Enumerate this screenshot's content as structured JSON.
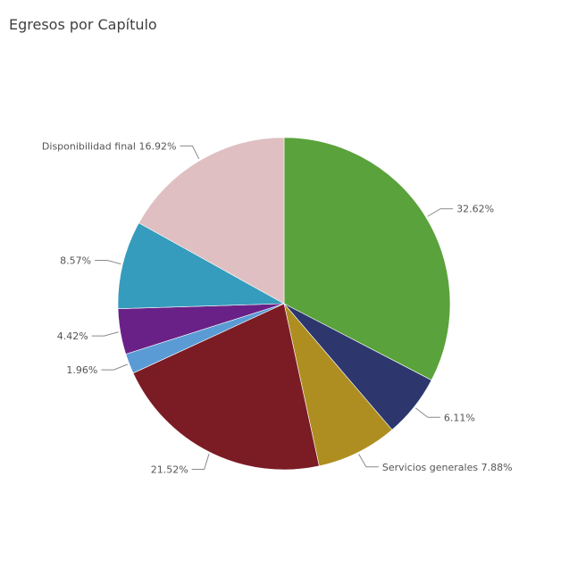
{
  "chart_data": {
    "type": "pie",
    "title": "Egresos por Capítulo",
    "slices": [
      {
        "name": "",
        "value": 32.62,
        "label": "32.62%",
        "color": "#5aa23b"
      },
      {
        "name": "",
        "value": 6.11,
        "label": "6.11%",
        "color": "#2d376e"
      },
      {
        "name": "Servicios generales",
        "value": 7.88,
        "label": "Servicios generales 7.88%",
        "color": "#ae8e20"
      },
      {
        "name": "",
        "value": 21.52,
        "label": "21.52%",
        "color": "#7b1c25"
      },
      {
        "name": "",
        "value": 1.96,
        "label": "1.96%",
        "color": "#5b9bd5"
      },
      {
        "name": "",
        "value": 4.42,
        "label": "4.42%",
        "color": "#6a2187"
      },
      {
        "name": "",
        "value": 8.57,
        "label": "8.57%",
        "color": "#359cbd"
      },
      {
        "name": "Disponibilidad final",
        "value": 16.92,
        "label": "Disponibilidad final 16.92%",
        "color": "#dfbfc1"
      }
    ],
    "start_angle_deg": 0,
    "direction": "clockwise",
    "legend": "none"
  }
}
